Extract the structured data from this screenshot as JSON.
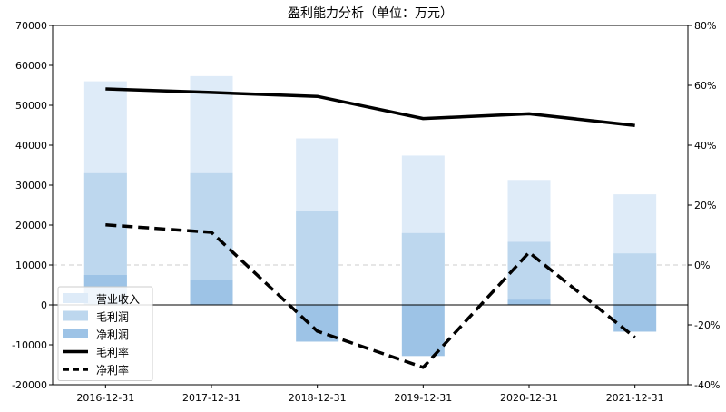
{
  "chart_data": {
    "type": "bar",
    "title": "盈利能力分析（单位：万元）",
    "categories": [
      "2016-12-31",
      "2017-12-31",
      "2018-12-31",
      "2019-12-31",
      "2020-12-31",
      "2021-12-31"
    ],
    "left_axis": {
      "ylim": [
        -20000,
        70000
      ],
      "ticks": [
        "-20000",
        "-10000",
        "0",
        "10000",
        "20000",
        "30000",
        "40000",
        "50000",
        "60000",
        "70000"
      ]
    },
    "right_axis": {
      "ylim": [
        -40,
        80
      ],
      "ticks": [
        "-40%",
        "-20%",
        "0%",
        "20%",
        "40%",
        "60%",
        "80%"
      ],
      "unit": "%"
    },
    "bar_series": [
      {
        "name": "营业收入",
        "color": "#deebf8",
        "values": [
          56000,
          57300,
          41700,
          37400,
          31300,
          27700
        ]
      },
      {
        "name": "毛利润",
        "color": "#bdd7ee",
        "values": [
          33000,
          33000,
          23500,
          18000,
          15800,
          12900
        ]
      },
      {
        "name": "净利润",
        "color": "#9dc3e6",
        "values": [
          7500,
          6300,
          -9200,
          -12800,
          1300,
          -6700
        ]
      }
    ],
    "line_series": [
      {
        "name": "毛利率",
        "axis": "right",
        "style": "solid",
        "color": "#000000",
        "values": [
          58.8,
          57.6,
          56.3,
          48.9,
          50.5,
          46.6
        ]
      },
      {
        "name": "净利率",
        "axis": "right",
        "style": "dashed",
        "color": "#000000",
        "values": [
          13.4,
          10.9,
          -22.1,
          -34.2,
          4.2,
          -24.2
        ]
      }
    ],
    "reference_line": {
      "axis": "right",
      "value": 0,
      "style": "dashed",
      "color": "#cccccc"
    },
    "zero_line": {
      "axis": "left",
      "value": 0,
      "color": "#000000"
    },
    "legend_position": "lower-left",
    "grid": false
  }
}
